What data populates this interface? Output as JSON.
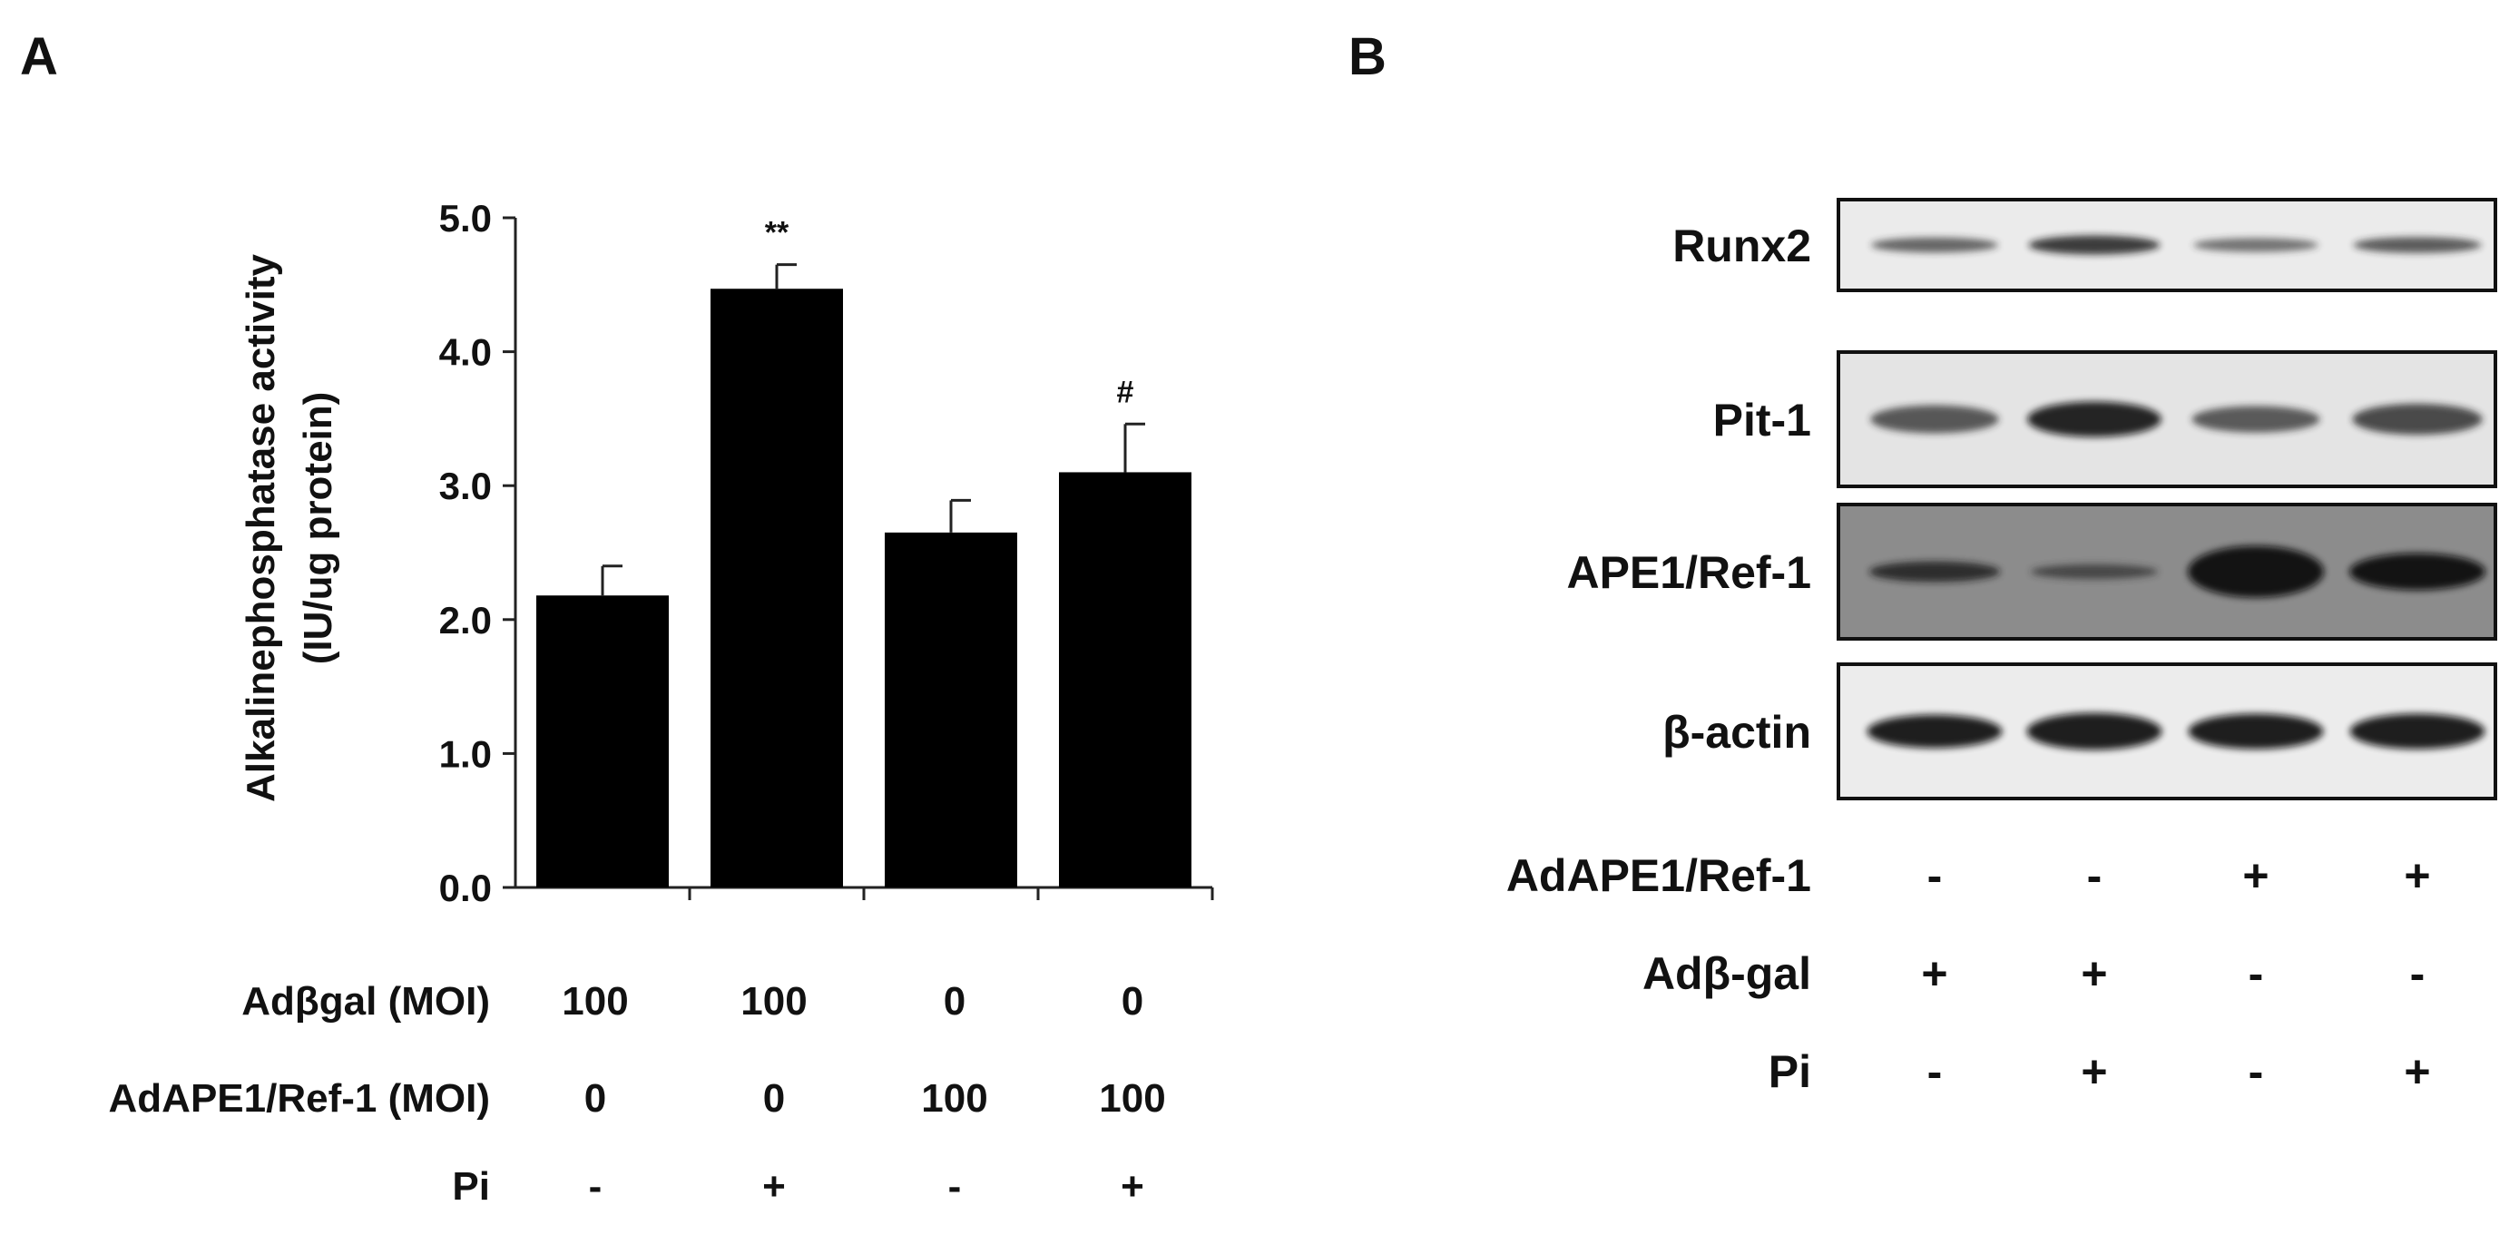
{
  "panel_a": {
    "label": "A",
    "ylabel_line1": "Alkalinephosphatase activity",
    "ylabel_line2": "(IU/ug protein)",
    "treatments": [
      {
        "label": "Adβgal (MOI)",
        "values": [
          "100",
          "100",
          "0",
          "0"
        ]
      },
      {
        "label": "AdAPE1/Ref-1 (MOI)",
        "values": [
          "0",
          "0",
          "100",
          "100"
        ]
      },
      {
        "label": "Pi",
        "values": [
          "-",
          "+",
          "-",
          "+"
        ]
      }
    ]
  },
  "chart_data": {
    "type": "bar",
    "categories": [
      "1",
      "2",
      "3",
      "4"
    ],
    "values": [
      2.18,
      4.47,
      2.65,
      3.1
    ],
    "errors": [
      0.22,
      0.18,
      0.24,
      0.36
    ],
    "annotations": [
      "",
      "**",
      "",
      "#"
    ],
    "ylim": [
      0,
      5
    ],
    "yticks": [
      "0.0",
      "1.0",
      "2.0",
      "3.0",
      "4.0",
      "5.0"
    ],
    "ylabel": "Alkalinephosphatase activity (IU/ug protein)",
    "bar_color": "#000000",
    "grid": false
  },
  "panel_b": {
    "label": "B",
    "blots": [
      {
        "label": "Runx2",
        "bg": "#ebebeb",
        "intensity": [
          0.55,
          0.78,
          0.45,
          0.6
        ],
        "thickness": [
          0.3,
          0.38,
          0.28,
          0.32
        ]
      },
      {
        "label": "Pit-1",
        "bg": "#e4e4e4",
        "intensity": [
          0.62,
          0.9,
          0.6,
          0.7
        ],
        "thickness": [
          0.38,
          0.48,
          0.36,
          0.42
        ]
      },
      {
        "label": "APE1/Ref-1",
        "bg": "#8c8c8c",
        "intensity": [
          0.75,
          0.55,
          1.0,
          1.0
        ],
        "thickness": [
          0.28,
          0.2,
          0.7,
          0.5
        ]
      },
      {
        "label": "β-actin",
        "bg": "#ececec",
        "intensity": [
          0.95,
          0.95,
          0.95,
          0.95
        ],
        "thickness": [
          0.45,
          0.5,
          0.48,
          0.48
        ]
      }
    ],
    "treatments": [
      {
        "label": "AdAPE1/Ref-1",
        "values": [
          "-",
          "-",
          "+",
          "+"
        ]
      },
      {
        "label": "Adβ-gal",
        "values": [
          "+",
          "+",
          "-",
          "-"
        ]
      },
      {
        "label": "Pi",
        "values": [
          "-",
          "+",
          "-",
          "+"
        ]
      }
    ]
  }
}
